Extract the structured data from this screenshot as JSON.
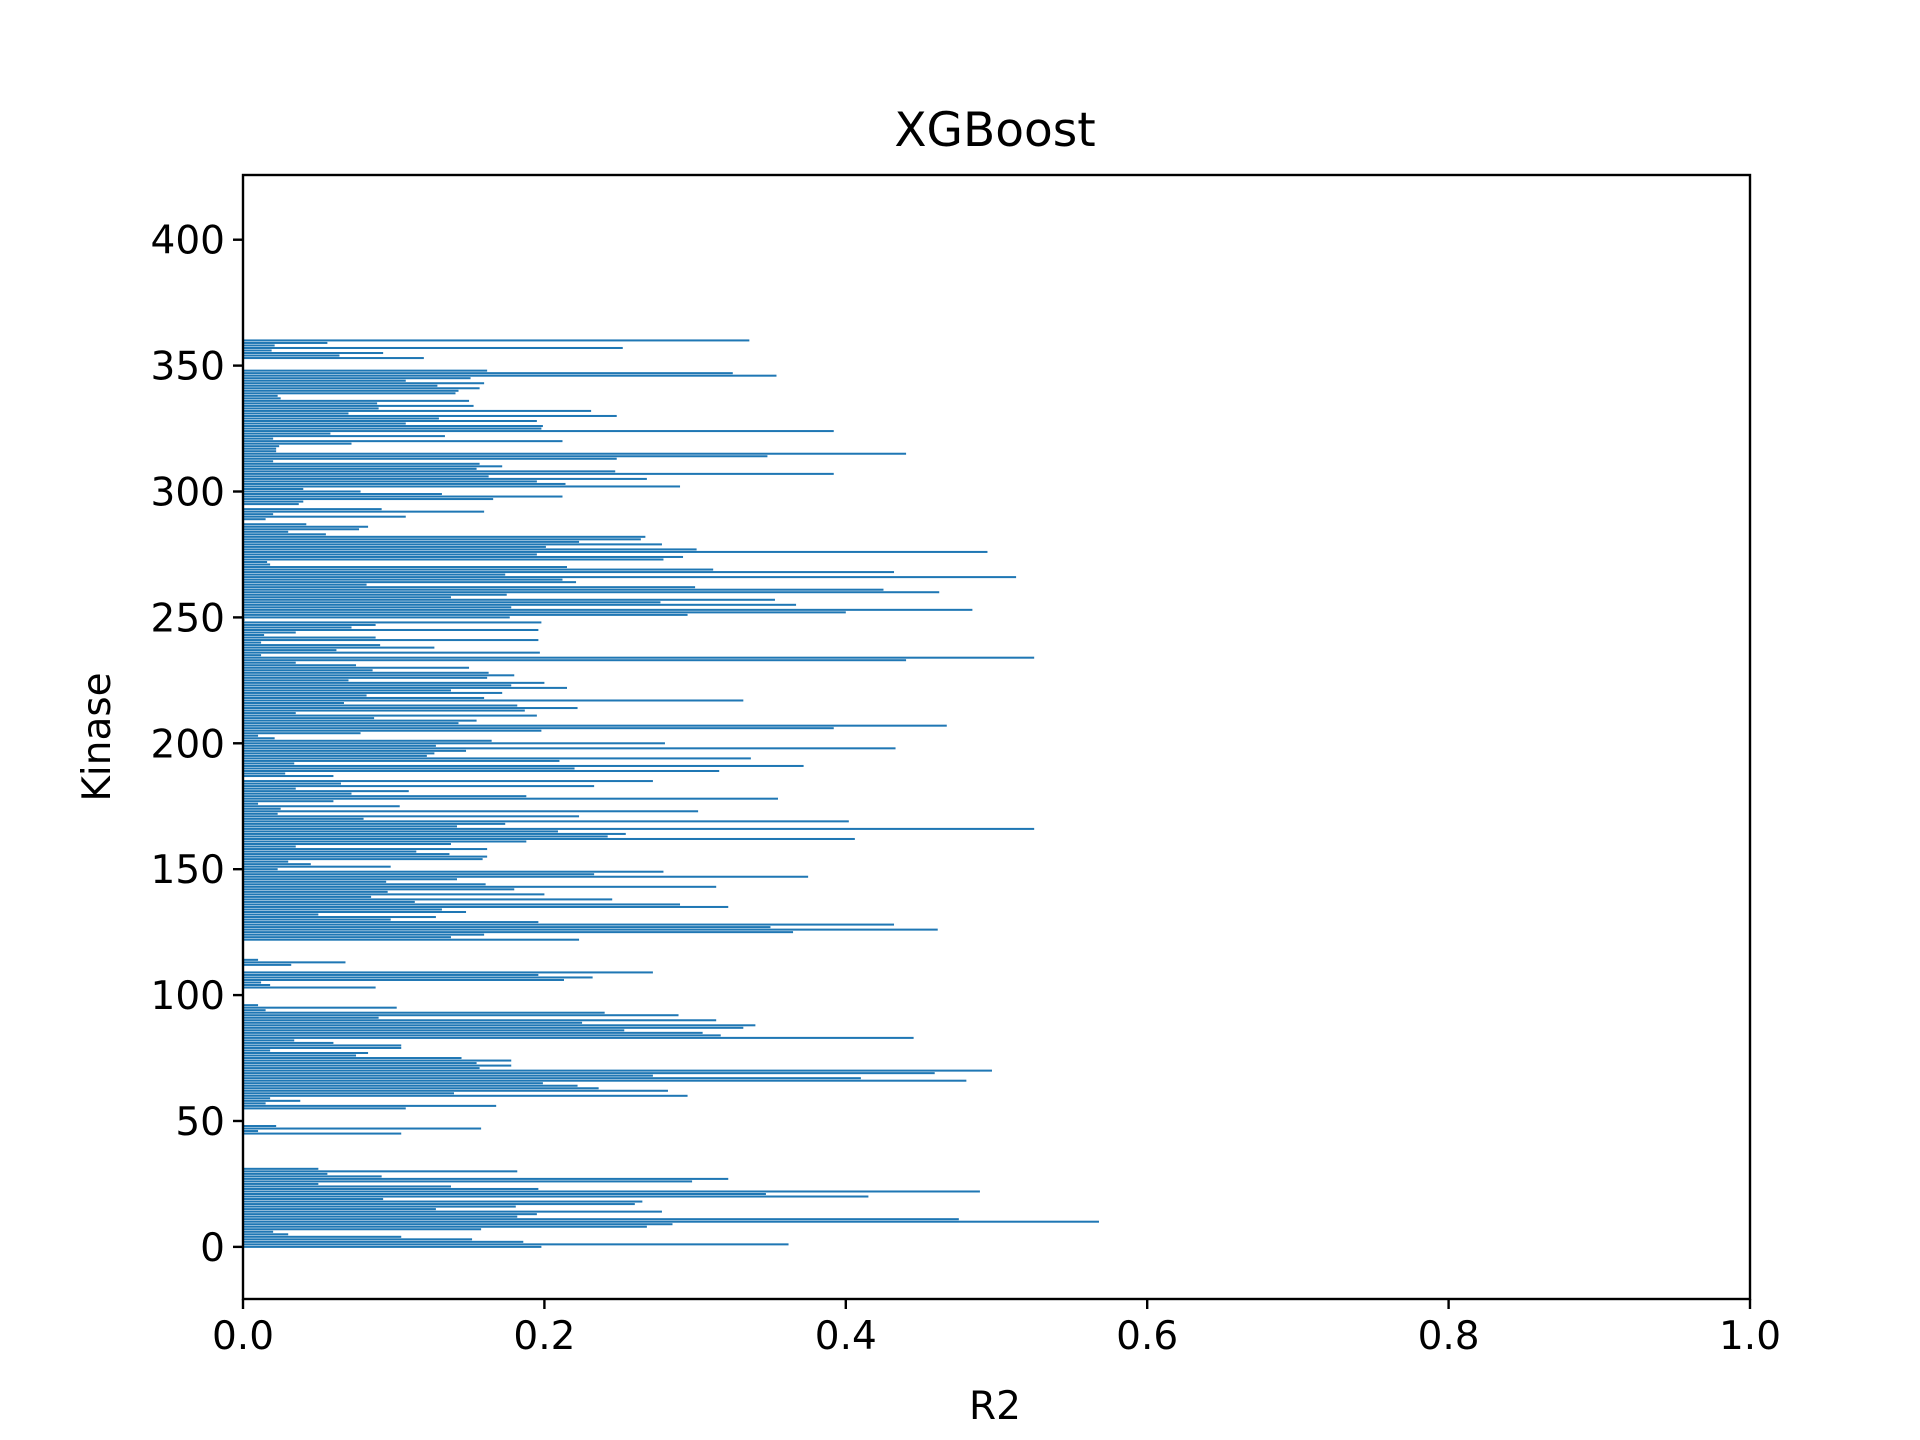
{
  "chart_data": {
    "type": "bar",
    "orientation": "horizontal",
    "title": "XGBoost",
    "xlabel": "R2",
    "ylabel": "Kinase",
    "xlim": [
      0.0,
      1.0
    ],
    "ylim": [
      -20.7,
      425.7
    ],
    "x_ticks": [
      0.0,
      0.2,
      0.4,
      0.6,
      0.8,
      1.0
    ],
    "x_tick_labels": [
      "0.0",
      "0.2",
      "0.4",
      "0.6",
      "0.8",
      "1.0"
    ],
    "y_ticks": [
      0,
      50,
      100,
      150,
      200,
      250,
      300,
      350,
      400
    ],
    "y_tick_labels": [
      "0",
      "50",
      "100",
      "150",
      "200",
      "250",
      "300",
      "350",
      "400"
    ],
    "bar_color": "#1f77b4",
    "grid": false,
    "legend": "none",
    "series": [
      {
        "values": [
          0.198,
          0.362,
          0.186,
          0.152,
          0.105,
          0.03,
          0.02,
          0.158,
          0.268,
          0.285,
          0.568,
          0.475,
          0.182,
          0.195,
          0.278,
          0.128,
          0.181,
          0.26,
          0.265,
          0.093,
          0.415,
          0.347,
          0.489,
          0.196,
          0.138,
          0.05,
          0.298,
          0.322,
          0.092,
          0.056,
          0.182,
          0.05,
          0,
          0,
          0,
          0,
          0,
          0,
          0,
          0,
          0,
          0,
          0,
          0,
          0,
          0.105,
          0.01,
          0.158,
          0.022,
          0,
          0,
          0,
          0,
          0,
          0,
          0.108,
          0.168,
          0.015,
          0.038,
          0.018,
          0.295,
          0.14,
          0.282,
          0.236,
          0.222,
          0.199,
          0.48,
          0.41,
          0.272,
          0.459,
          0.497,
          0.157,
          0.178,
          0.155,
          0.178,
          0.145,
          0.075,
          0.083,
          0.018,
          0.105,
          0.105,
          0.06,
          0.034,
          0.445,
          0.317,
          0.305,
          0.253,
          0.332,
          0.34,
          0.225,
          0.314,
          0.09,
          0.289,
          0.24,
          0.015,
          0.102,
          0.01,
          0,
          0,
          0,
          0,
          0,
          0,
          0.088,
          0.018,
          0.012,
          0.213,
          0.232,
          0.196,
          0.272,
          0,
          0,
          0.032,
          0.068,
          0.01,
          0,
          0,
          0,
          0,
          0,
          0,
          0,
          0.223,
          0.138,
          0.16,
          0.365,
          0.461,
          0.35,
          0.432,
          0.196,
          0.098,
          0.128,
          0.05,
          0.148,
          0.132,
          0.322,
          0.29,
          0.114,
          0.245,
          0.085,
          0.2,
          0.096,
          0.18,
          0.314,
          0.161,
          0.095,
          0.142,
          0.375,
          0.233,
          0.279,
          0.023,
          0.098,
          0.045,
          0.03,
          0.159,
          0.162,
          0.137,
          0.115,
          0.162,
          0.035,
          0.138,
          0.188,
          0.406,
          0.242,
          0.254,
          0.209,
          0.525,
          0.142,
          0.174,
          0.402,
          0.08,
          0.223,
          0.023,
          0.302,
          0.025,
          0.104,
          0.01,
          0.06,
          0.355,
          0.188,
          0.072,
          0.11,
          0.035,
          0.233,
          0.065,
          0.272,
          0,
          0.06,
          0.028,
          0.316,
          0.22,
          0.372,
          0.034,
          0.21,
          0.337,
          0.122,
          0.127,
          0.148,
          0.433,
          0.128,
          0.28,
          0.165,
          0.021,
          0.01,
          0.078,
          0.198,
          0.392,
          0.467,
          0.143,
          0.155,
          0.087,
          0.195,
          0.035,
          0.187,
          0.222,
          0.182,
          0.067,
          0.332,
          0.16,
          0.082,
          0.172,
          0.138,
          0.215,
          0.178,
          0.2,
          0.07,
          0.162,
          0.18,
          0.163,
          0.086,
          0.15,
          0.075,
          0.035,
          0.44,
          0.525,
          0.012,
          0.197,
          0.062,
          0.127,
          0.091,
          0.012,
          0.196,
          0.088,
          0.014,
          0.035,
          0.196,
          0.072,
          0.088,
          0.198,
          0.001,
          0.177,
          0.295,
          0.4,
          0.484,
          0.178,
          0.367,
          0.277,
          0.353,
          0.138,
          0.175,
          0.462,
          0.425,
          0.3,
          0.082,
          0.221,
          0.212,
          0.513,
          0.174,
          0.432,
          0.312,
          0.215,
          0.018,
          0.016,
          0.279,
          0.292,
          0.195,
          0.494,
          0.301,
          0.201,
          0.278,
          0.223,
          0.264,
          0.267,
          0.055,
          0.03,
          0.077,
          0.083,
          0.042,
          0,
          0.015,
          0.108,
          0.02,
          0.16,
          0.092,
          0,
          0.037,
          0.04,
          0.166,
          0.212,
          0.132,
          0.078,
          0.04,
          0.29,
          0.214,
          0.195,
          0.268,
          0.163,
          0.392,
          0.247,
          0.155,
          0.172,
          0.157,
          0.02,
          0.248,
          0.348,
          0.44,
          0.022,
          0.022,
          0.024,
          0.072,
          0.212,
          0.02,
          0.134,
          0.058,
          0.392,
          0.198,
          0.199,
          0.108,
          0.195,
          0.13,
          0.248,
          0.07,
          0.231,
          0.09,
          0.153,
          0.089,
          0.15,
          0.025,
          0.023,
          0.141,
          0.143,
          0.157,
          0.129,
          0.16,
          0.108,
          0.151,
          0.354,
          0.325,
          0.162,
          0,
          0.0,
          0,
          0,
          0.12,
          0.064,
          0.093,
          0.019,
          0.252,
          0.021,
          0.056,
          0.336
        ]
      }
    ]
  }
}
